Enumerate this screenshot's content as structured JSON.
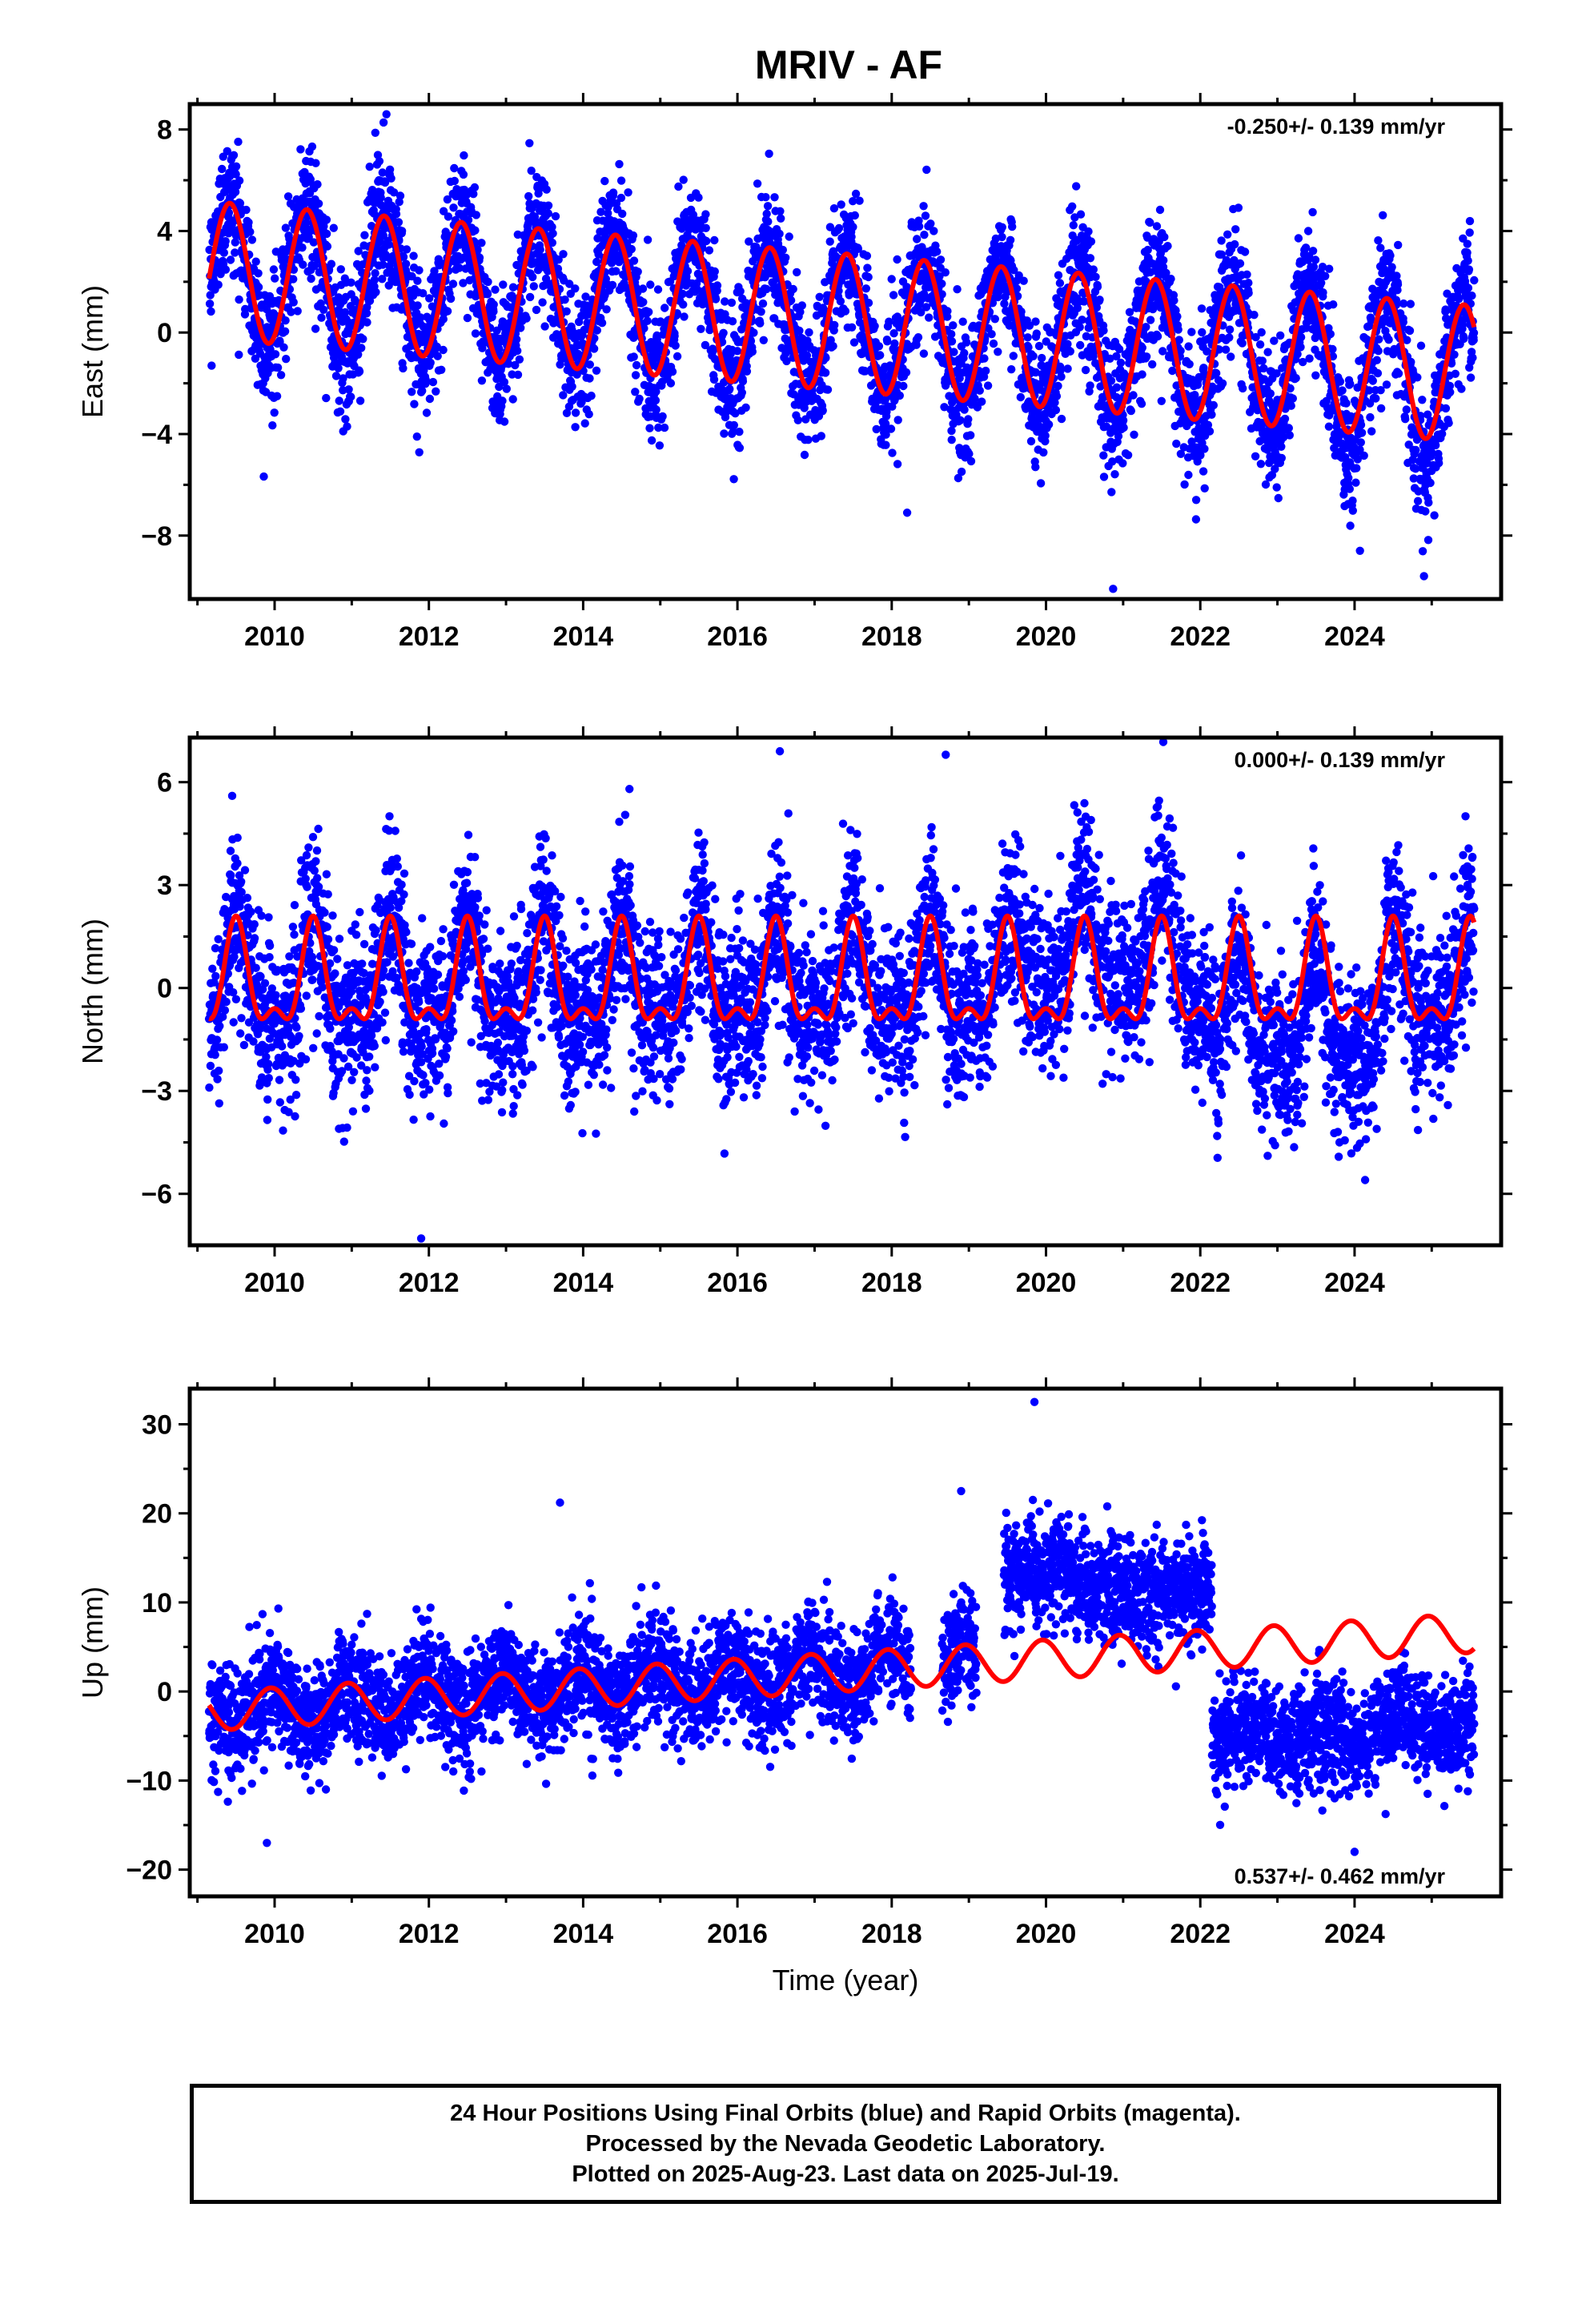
{
  "title": "MRIV - AF",
  "colors": {
    "final_orbits": "#0000ff",
    "model_fit": "#ff0000",
    "frame": "#000000"
  },
  "footer": {
    "line1": "24 Hour Positions Using Final Orbits (blue) and Rapid Orbits (magenta).",
    "line2": "Processed by the Nevada Geodetic Laboratory.",
    "line3": "Plotted on 2025-Aug-23. Last data on 2025-Jul-19."
  },
  "chart_data": [
    {
      "type": "scatter",
      "ylabel": "East (mm)",
      "xlabel": "",
      "rate_text": "-0.250+/- 0.139 mm/yr",
      "rate_position": "top-right",
      "xlim": [
        2008.9,
        2025.9
      ],
      "ylim": [
        -10.5,
        9.0
      ],
      "x_ticks": [
        2010,
        2012,
        2014,
        2016,
        2018,
        2020,
        2022,
        2024
      ],
      "y_ticks": [
        8,
        4,
        0,
        -4,
        -8
      ],
      "y_tick_labels": [
        "8",
        "4",
        "0",
        "−4",
        "−8"
      ],
      "grid": false,
      "series": [
        {
          "kind": "scatter",
          "color": "#0000ff",
          "description_points": "daily positions, 2009.15 to 2025.55",
          "points_sample": [
            [
              2009.2,
              0.5
            ],
            [
              2009.4,
              4.8
            ],
            [
              2009.6,
              3.0
            ],
            [
              2009.9,
              -1.5
            ],
            [
              2010.4,
              4.9
            ],
            [
              2010.9,
              -1.0
            ],
            [
              2011.4,
              5.0
            ],
            [
              2011.9,
              -1.5
            ],
            [
              2012.4,
              4.5
            ],
            [
              2012.9,
              -1.5
            ],
            [
              2013.4,
              4.0
            ],
            [
              2013.9,
              -1.8
            ],
            [
              2014.4,
              4.0
            ],
            [
              2014.9,
              -2.0
            ],
            [
              2015.4,
              3.5
            ],
            [
              2015.9,
              -2.0
            ],
            [
              2016.4,
              3.0
            ],
            [
              2016.9,
              -2.0
            ],
            [
              2017.4,
              3.0
            ],
            [
              2017.9,
              -2.5
            ],
            [
              2018.4,
              2.0
            ],
            [
              2018.9,
              -2.5
            ],
            [
              2019.4,
              2.0
            ],
            [
              2019.9,
              -3.0
            ],
            [
              2020.4,
              2.5
            ],
            [
              2020.9,
              -4.5
            ],
            [
              2021.4,
              2.0
            ],
            [
              2021.9,
              -3.5
            ],
            [
              2022.4,
              1.5
            ],
            [
              2022.9,
              -4.5
            ],
            [
              2023.4,
              1.5
            ],
            [
              2023.9,
              -5.0
            ],
            [
              2024.4,
              1.5
            ],
            [
              2024.9,
              -5.5
            ],
            [
              2025.4,
              1.0
            ]
          ],
          "outliers": [
            [
              2011.45,
              8.6
            ],
            [
              2018.2,
              -7.1
            ],
            [
              2020.87,
              -10.1
            ],
            [
              2024.9,
              -9.6
            ],
            [
              2024.07,
              -8.6
            ]
          ]
        },
        {
          "kind": "line",
          "color": "#ff0000",
          "name": "",
          "model": "annual sinusoid with linear trend",
          "trend_mm_per_yr": -0.25,
          "annual_amplitude_mm": 2.7,
          "peak_phase_year_fraction": 0.42,
          "offset_at_2009_mm": 2.5,
          "x_start": 2009.15,
          "x_end": 2025.55
        }
      ]
    },
    {
      "type": "scatter",
      "ylabel": "North (mm)",
      "xlabel": "",
      "rate_text": "0.000+/- 0.139 mm/yr",
      "rate_position": "top-right",
      "xlim": [
        2008.9,
        2025.9
      ],
      "ylim": [
        -7.5,
        7.3
      ],
      "x_ticks": [
        2010,
        2012,
        2014,
        2016,
        2018,
        2020,
        2022,
        2024
      ],
      "y_ticks": [
        6,
        3,
        0,
        -3,
        -6
      ],
      "y_tick_labels": [
        "6",
        "3",
        "0",
        "−3",
        "−6"
      ],
      "grid": false,
      "series": [
        {
          "kind": "scatter",
          "color": "#0000ff",
          "description_points": "daily positions, 2009.15 to 2025.55",
          "points_sample": [
            [
              2009.2,
              -1.0
            ],
            [
              2009.5,
              2.5
            ],
            [
              2009.9,
              -1.5
            ],
            [
              2010.5,
              2.0
            ],
            [
              2011.0,
              -1.5
            ],
            [
              2011.5,
              2.5
            ],
            [
              2012.0,
              -2.0
            ],
            [
              2012.5,
              2.0
            ],
            [
              2013.0,
              -1.0
            ],
            [
              2013.5,
              1.5
            ],
            [
              2014.0,
              -1.0
            ],
            [
              2014.5,
              2.0
            ],
            [
              2015.0,
              -1.5
            ],
            [
              2015.5,
              2.5
            ],
            [
              2016.0,
              -1.5
            ],
            [
              2016.5,
              2.0
            ],
            [
              2017.0,
              -1.0
            ],
            [
              2017.5,
              2.0
            ],
            [
              2018.0,
              -1.0
            ],
            [
              2018.5,
              1.0
            ],
            [
              2019.0,
              -1.5
            ],
            [
              2019.5,
              1.0
            ],
            [
              2020.0,
              -0.5
            ],
            [
              2020.5,
              3.5
            ],
            [
              2021.0,
              1.5
            ],
            [
              2021.5,
              3.0
            ],
            [
              2022.0,
              -1.0
            ],
            [
              2022.5,
              -2.5
            ],
            [
              2023.0,
              -2.5
            ],
            [
              2023.5,
              0.5
            ],
            [
              2024.0,
              -4.0
            ],
            [
              2024.5,
              1.5
            ],
            [
              2025.0,
              -2.0
            ],
            [
              2025.5,
              2.0
            ]
          ],
          "outliers": [
            [
              2009.45,
              5.6
            ],
            [
              2011.9,
              -7.3
            ],
            [
              2016.55,
              6.9
            ],
            [
              2018.7,
              6.8
            ],
            [
              2014.6,
              5.8
            ]
          ]
        },
        {
          "kind": "line",
          "color": "#ff0000",
          "name": "",
          "model": "annual plus semi-annual sinusoid",
          "trend_mm_per_yr": 0.0,
          "annual_amplitude_mm": 1.35,
          "semiannual_amplitude_mm": 0.65,
          "peak_phase_year_fraction": 0.5,
          "offset_mm": 0.1,
          "x_start": 2009.15,
          "x_end": 2025.55
        }
      ]
    },
    {
      "type": "scatter",
      "ylabel": "Up (mm)",
      "xlabel": "Time (year)",
      "rate_text": "0.537+/- 0.462 mm/yr",
      "rate_position": "bottom-right",
      "xlim": [
        2008.9,
        2025.9
      ],
      "ylim": [
        -23.0,
        34.0
      ],
      "x_ticks": [
        2010,
        2012,
        2014,
        2016,
        2018,
        2020,
        2022,
        2024
      ],
      "y_ticks": [
        30,
        20,
        10,
        0,
        -10,
        -20
      ],
      "y_tick_labels": [
        "30",
        "20",
        "10",
        "0",
        "−10",
        "−20"
      ],
      "grid": false,
      "series": [
        {
          "kind": "scatter",
          "color": "#0000ff",
          "description_points": "daily positions, 2009.15 to 2025.55 with offsets near 2019.5 and 2022.1",
          "points_sample": [
            [
              2009.5,
              -2.0
            ],
            [
              2010.0,
              -1.0
            ],
            [
              2010.5,
              -3.0
            ],
            [
              2011.0,
              0.0
            ],
            [
              2011.5,
              -3.0
            ],
            [
              2012.0,
              -1.0
            ],
            [
              2012.5,
              -3.0
            ],
            [
              2013.0,
              -1.0
            ],
            [
              2013.5,
              -4.0
            ],
            [
              2014.0,
              0.0
            ],
            [
              2014.5,
              -2.0
            ],
            [
              2015.0,
              1.0
            ],
            [
              2015.5,
              -1.0
            ],
            [
              2016.0,
              3.0
            ],
            [
              2016.5,
              2.0
            ],
            [
              2017.0,
              5.0
            ],
            [
              2017.5,
              3.0
            ],
            [
              2018.0,
              4.0
            ],
            [
              2018.8,
              3.0
            ],
            [
              2019.6,
              13.0
            ],
            [
              2020.0,
              14.0
            ],
            [
              2020.5,
              11.0
            ],
            [
              2021.0,
              11.0
            ],
            [
              2021.5,
              10.0
            ],
            [
              2022.0,
              10.0
            ],
            [
              2022.5,
              -5.0
            ],
            [
              2023.0,
              -6.0
            ],
            [
              2023.5,
              -5.0
            ],
            [
              2024.0,
              -7.0
            ],
            [
              2024.5,
              -3.0
            ],
            [
              2025.0,
              -5.0
            ],
            [
              2025.5,
              -7.0
            ]
          ],
          "outliers": [
            [
              2019.85,
              32.5
            ],
            [
              2013.7,
              21.2
            ],
            [
              2009.9,
              -17.0
            ],
            [
              2024.0,
              -18.0
            ],
            [
              2018.9,
              22.5
            ]
          ]
        },
        {
          "kind": "line",
          "color": "#ff0000",
          "name": "",
          "model": "annual sinusoid with linear trend",
          "trend_mm_per_yr": 0.537,
          "annual_amplitude_mm": 2.2,
          "peak_phase_year_fraction": 0.95,
          "offset_at_2009_mm": -2.3,
          "x_start": 2009.15,
          "x_end": 2025.55
        }
      ]
    }
  ]
}
